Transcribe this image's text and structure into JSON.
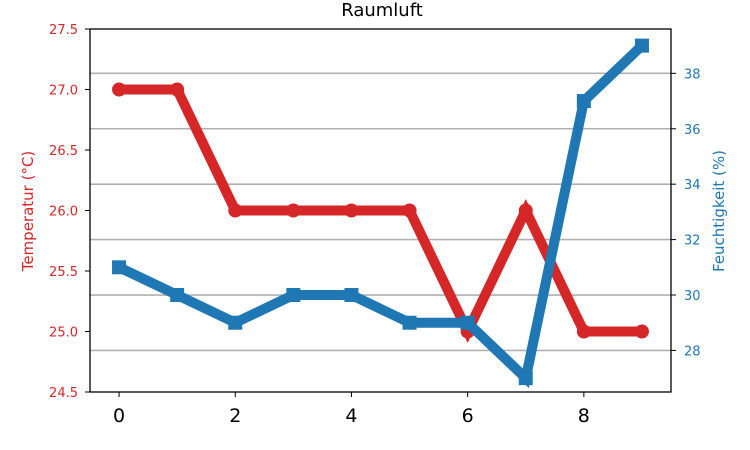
{
  "chart_data": {
    "type": "line",
    "title": "Raumluft",
    "x": [
      0,
      1,
      2,
      3,
      4,
      5,
      6,
      7,
      8,
      9
    ],
    "xlim": [
      -0.5,
      9.5
    ],
    "xticks": [
      "0",
      "2",
      "4",
      "6",
      "8"
    ],
    "grid": "horizontal lines from right axis",
    "series": [
      {
        "name": "Temperatur (°C)",
        "axis": "left",
        "color": "#d62728",
        "marker": "circle",
        "values": [
          27.0,
          27.0,
          26.0,
          26.0,
          26.0,
          26.0,
          25.0,
          26.0,
          25.0,
          25.0
        ]
      },
      {
        "name": "Feuchtigkeit (%)",
        "axis": "right",
        "color": "#1f77b4",
        "marker": "square",
        "values": [
          31,
          30,
          29,
          30,
          30,
          29,
          29,
          27,
          37,
          39
        ]
      }
    ],
    "y_left": {
      "label": "Temperatur (°C)",
      "lim": [
        24.5,
        27.5
      ],
      "ticks": [
        "24.5",
        "25.0",
        "25.5",
        "26.0",
        "26.5",
        "27.0",
        "27.5"
      ],
      "color": "#d62728"
    },
    "y_right": {
      "label": "Feuchtigkeit (%)",
      "lim": [
        26.5,
        39.6
      ],
      "ticks": [
        "28",
        "30",
        "32",
        "34",
        "36",
        "38"
      ],
      "color": "#1f77b4"
    }
  }
}
